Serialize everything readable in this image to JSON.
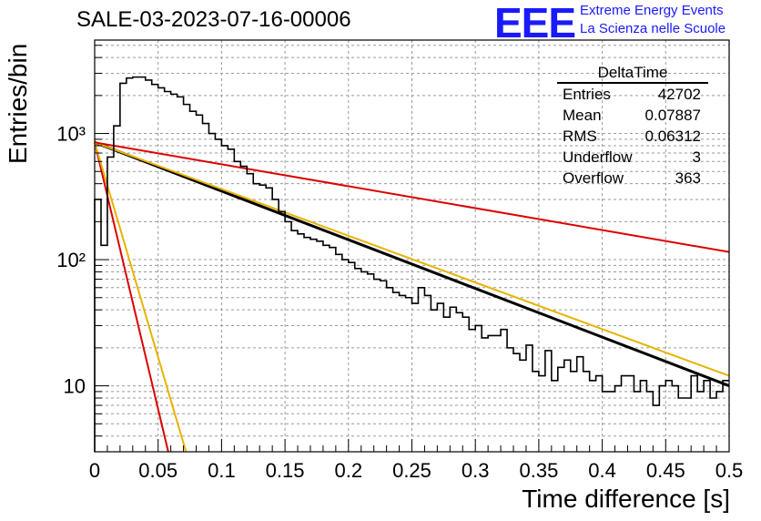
{
  "title": "SALE-03-2023-07-16-00006",
  "logo": {
    "text": "EEE",
    "line1": "Extreme Energy Events",
    "line2": "La Scienza nelle Scuole",
    "color": "#1a1aff"
  },
  "stats": {
    "title": "DeltaTime",
    "rows": [
      {
        "label": "Entries",
        "value": "42702"
      },
      {
        "label": "Mean",
        "value": "0.07887"
      },
      {
        "label": "RMS",
        "value": "0.06312"
      },
      {
        "label": "Underflow",
        "value": "3"
      },
      {
        "label": "Overflow",
        "value": "363"
      }
    ]
  },
  "chart_data": {
    "type": "histogram",
    "ylabel": "Entries/bin",
    "xlabel": "Time difference [s]",
    "xlim": [
      0,
      0.5
    ],
    "ylim": [
      3,
      5500
    ],
    "yscale": "log",
    "grid": true,
    "xticks": [
      "0",
      "0.05",
      "0.1",
      "0.15",
      "0.2",
      "0.25",
      "0.3",
      "0.35",
      "0.4",
      "0.45",
      "0.5"
    ],
    "yticks": [
      {
        "label": "10",
        "value": 10
      },
      {
        "label": "10²",
        "value": 100
      },
      {
        "label": "10³",
        "value": 1000
      }
    ],
    "bin_width": 0.005,
    "histogram": [
      300,
      130,
      650,
      1150,
      2500,
      2750,
      2800,
      2800,
      2650,
      2450,
      2300,
      2150,
      2050,
      1950,
      1700,
      1500,
      1400,
      1200,
      1000,
      900,
      800,
      750,
      600,
      550,
      480,
      400,
      390,
      370,
      300,
      240,
      200,
      170,
      160,
      150,
      145,
      140,
      130,
      125,
      110,
      100,
      95,
      85,
      80,
      77,
      70,
      68,
      60,
      55,
      52,
      50,
      45,
      60,
      52,
      40,
      45,
      35,
      42,
      38,
      35,
      28,
      30,
      24,
      25,
      25,
      28,
      20,
      18,
      16,
      21,
      13,
      12,
      19,
      11,
      14,
      16,
      13,
      17,
      13,
      11,
      12,
      9,
      9,
      10,
      12,
      12,
      9,
      11,
      9,
      7,
      10,
      11,
      10,
      8,
      8,
      12,
      9,
      11,
      8,
      9,
      11
    ],
    "fit_lines": [
      {
        "color": "#000000",
        "points": [
          [
            0,
            850
          ],
          [
            0.5,
            10
          ]
        ]
      },
      {
        "color": "#e8b300",
        "points": [
          [
            0,
            850
          ],
          [
            0.5,
            12
          ]
        ]
      },
      {
        "color": "#dd0000",
        "points": [
          [
            0,
            850
          ],
          [
            0.5,
            115
          ]
        ]
      },
      {
        "color": "#dd0000",
        "points": [
          [
            0,
            850
          ],
          [
            0.058,
            3
          ]
        ]
      },
      {
        "color": "#e8b300",
        "points": [
          [
            0,
            850
          ],
          [
            0.072,
            3
          ]
        ]
      }
    ]
  }
}
